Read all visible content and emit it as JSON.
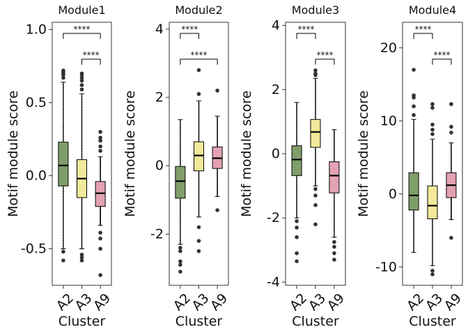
{
  "chart_data": [
    {
      "type": "box",
      "title": "Module1",
      "xlabel": "Cluster",
      "ylabel": "Motif module score",
      "categories": [
        "A2",
        "A3",
        "A9"
      ],
      "ylim": [
        -0.75,
        1.05
      ],
      "yticks": [
        1.0,
        0.5,
        0.0,
        -0.5
      ],
      "ytick_labels": [
        "1.0",
        "0.5",
        "0.0",
        "-0.5"
      ],
      "boxes": [
        {
          "category": "A2",
          "color": "#7f9e6a",
          "whisker_low": -0.5,
          "q1": -0.07,
          "median": 0.07,
          "q3": 0.23,
          "whisker_high": 0.64,
          "outliers": [
            0.72,
            0.71,
            0.7,
            0.69,
            0.67,
            -0.52,
            -0.58
          ]
        },
        {
          "category": "A3",
          "color": "#f2e99a",
          "whisker_low": -0.5,
          "q1": -0.15,
          "median": -0.02,
          "q3": 0.11,
          "whisker_high": 0.56,
          "outliers": [
            0.7,
            0.69,
            0.67,
            0.65,
            0.62,
            0.59,
            -0.54,
            -0.56,
            -0.58
          ]
        },
        {
          "category": "A9",
          "color": "#e3a2b3",
          "whisker_low": -0.34,
          "q1": -0.21,
          "median": -0.12,
          "q3": -0.04,
          "whisker_high": 0.13,
          "outliers": [
            0.3,
            0.26,
            0.24,
            0.2,
            0.17,
            -0.39,
            -0.43,
            -0.5,
            -0.68
          ]
        }
      ],
      "significance": [
        {
          "from": "A2",
          "to": "A9",
          "label": "****"
        },
        {
          "from": "A3",
          "to": "A9",
          "label": "****"
        }
      ]
    },
    {
      "type": "box",
      "title": "Module2",
      "xlabel": "Cluster",
      "ylabel": "Motif module score",
      "categories": [
        "A2",
        "A3",
        "A9"
      ],
      "ylim": [
        -3.5,
        4.2
      ],
      "yticks": [
        4,
        2,
        0,
        -2
      ],
      "ytick_labels": [
        "4",
        "2",
        "0",
        "-2"
      ],
      "boxes": [
        {
          "category": "A2",
          "color": "#7f9e6a",
          "whisker_low": -2.3,
          "q1": -0.95,
          "median": -0.45,
          "q3": -0.02,
          "whisker_high": 1.35,
          "outliers": [
            -2.4,
            -2.5,
            -2.8,
            -2.9,
            -3.1
          ]
        },
        {
          "category": "A3",
          "color": "#f2e99a",
          "whisker_low": -1.5,
          "q1": -0.15,
          "median": 0.3,
          "q3": 0.7,
          "whisker_high": 1.9,
          "outliers": [
            2.8,
            2.1,
            -1.8,
            -2.2,
            -2.5
          ]
        },
        {
          "category": "A9",
          "color": "#e3a2b3",
          "whisker_low": -0.9,
          "q1": -0.08,
          "median": 0.22,
          "q3": 0.55,
          "whisker_high": 1.45,
          "outliers": [
            2.2,
            -1.3
          ]
        }
      ],
      "significance": [
        {
          "from": "A2",
          "to": "A3",
          "label": "****"
        },
        {
          "from": "A2",
          "to": "A9",
          "label": "****"
        }
      ]
    },
    {
      "type": "box",
      "title": "Module3",
      "xlabel": "Cluster",
      "ylabel": "Motif module score",
      "categories": [
        "A2",
        "A3",
        "A9"
      ],
      "ylim": [
        -4.1,
        4.1
      ],
      "yticks": [
        4,
        2,
        0,
        -2,
        -4
      ],
      "ytick_labels": [
        "4",
        "2",
        "0",
        "-2",
        "-4"
      ],
      "boxes": [
        {
          "category": "A2",
          "color": "#7f9e6a",
          "whisker_low": -2.0,
          "q1": -0.68,
          "median": -0.18,
          "q3": 0.25,
          "whisker_high": 1.6,
          "outliers": [
            -2.1,
            -2.3,
            -2.6,
            -3.1,
            -3.35
          ]
        },
        {
          "category": "A3",
          "color": "#f2e99a",
          "whisker_low": -1.0,
          "q1": 0.2,
          "median": 0.68,
          "q3": 1.07,
          "whisker_high": 2.35,
          "outliers": [
            2.6,
            2.5,
            2.45,
            -1.1,
            -1.3,
            -1.6,
            -2.2
          ]
        },
        {
          "category": "A9",
          "color": "#e3a2b3",
          "whisker_low": -2.6,
          "q1": -1.22,
          "median": -0.68,
          "q3": -0.25,
          "whisker_high": 0.75,
          "outliers": [
            -2.75,
            -2.9,
            -3.1,
            -3.3
          ]
        }
      ],
      "significance": [
        {
          "from": "A2",
          "to": "A3",
          "label": "****"
        },
        {
          "from": "A3",
          "to": "A9",
          "label": "****"
        }
      ]
    },
    {
      "type": "box",
      "title": "Module4",
      "xlabel": "Cluster",
      "ylabel": "Motif module score",
      "categories": [
        "A2",
        "A3",
        "A9"
      ],
      "ylim": [
        -12.5,
        23.5
      ],
      "yticks": [
        20,
        10,
        0,
        -10
      ],
      "ytick_labels": [
        "20",
        "10",
        "0",
        "-10"
      ],
      "boxes": [
        {
          "category": "A2",
          "color": "#7f9e6a",
          "whisker_low": -8.0,
          "q1": -2.2,
          "median": -0.2,
          "q3": 2.9,
          "whisker_high": 10.2,
          "outliers": [
            17.0,
            13.5,
            13.2,
            12.0,
            10.8
          ]
        },
        {
          "category": "A3",
          "color": "#f2e99a",
          "whisker_low": -9.8,
          "q1": -3.4,
          "median": -1.6,
          "q3": 1.1,
          "whisker_high": 7.5,
          "outliers": [
            12.3,
            11.8,
            9.5,
            8.8,
            8.2,
            -10.5,
            -11.0
          ]
        },
        {
          "category": "A9",
          "color": "#e3a2b3",
          "whisker_low": -3.5,
          "q1": -0.5,
          "median": 1.2,
          "q3": 2.9,
          "whisker_high": 7.0,
          "outliers": [
            12.3,
            9.2,
            8.4,
            -6.0
          ]
        }
      ],
      "significance": [
        {
          "from": "A2",
          "to": "A3",
          "label": "****"
        },
        {
          "from": "A3",
          "to": "A9",
          "label": "****"
        }
      ]
    }
  ]
}
